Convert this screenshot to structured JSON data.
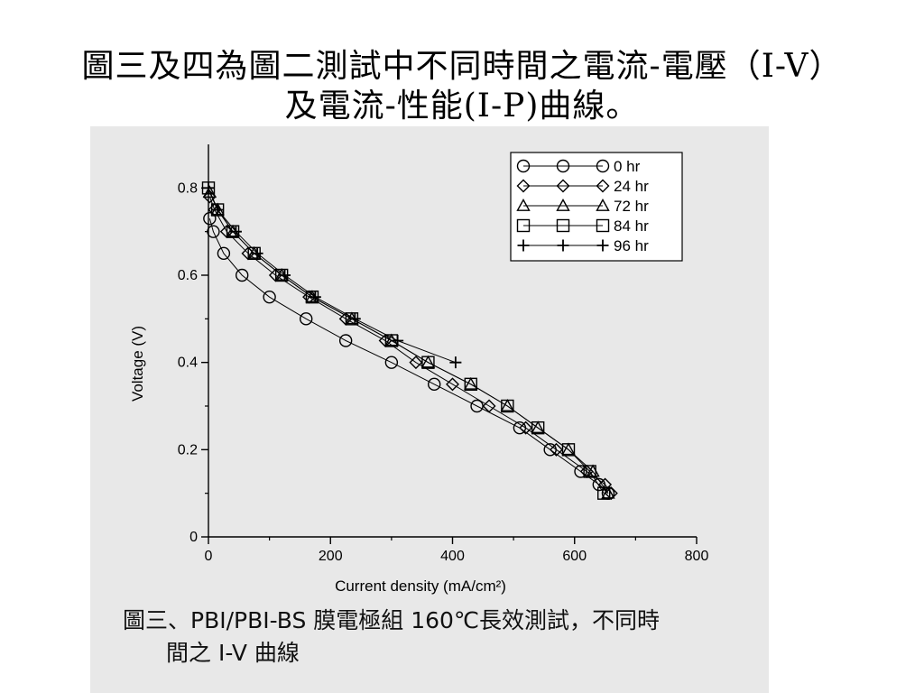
{
  "title": {
    "line1": "圖三及四為圖二測試中不同時間之電流-電壓（I-V）",
    "line2": "及電流-性能(I-P)曲線。"
  },
  "caption": {
    "line1": "圖三、PBI/PBI-BS 膜電極組 160℃長效測試，不同時",
    "line2": "間之 I-V 曲線"
  },
  "colors": {
    "panel": "#e8e8e8",
    "ink": "#000000"
  },
  "chart_data": {
    "type": "line",
    "xlabel": "Current density (mA/cm²)",
    "ylabel": "Voltage (V)",
    "xlim": [
      0,
      800
    ],
    "ylim": [
      0,
      0.9
    ],
    "xticks": [
      0,
      200,
      400,
      600,
      800
    ],
    "yticks": [
      0,
      0.2,
      0.4,
      0.6,
      0.8
    ],
    "grid": false,
    "legend_position": "top-right",
    "series": [
      {
        "name": "0 hr",
        "marker": "circle",
        "x": [
          2,
          8,
          25,
          55,
          100,
          160,
          225,
          300,
          370,
          440,
          510,
          560,
          610,
          640,
          655
        ],
        "y": [
          0.73,
          0.7,
          0.65,
          0.6,
          0.55,
          0.5,
          0.45,
          0.4,
          0.35,
          0.3,
          0.25,
          0.2,
          0.15,
          0.12,
          0.1
        ]
      },
      {
        "name": "24 hr",
        "marker": "diamond",
        "x": [
          2,
          10,
          30,
          65,
          110,
          165,
          225,
          290,
          340,
          400,
          460,
          520,
          570,
          620,
          650,
          660
        ],
        "y": [
          0.78,
          0.75,
          0.7,
          0.65,
          0.6,
          0.55,
          0.5,
          0.45,
          0.4,
          0.35,
          0.3,
          0.25,
          0.2,
          0.15,
          0.12,
          0.1
        ]
      },
      {
        "name": "72 hr",
        "marker": "triangle",
        "x": [
          2,
          15,
          40,
          75,
          120,
          170,
          235,
          300,
          360,
          430,
          490,
          540,
          590,
          630,
          655
        ],
        "y": [
          0.79,
          0.75,
          0.7,
          0.65,
          0.6,
          0.55,
          0.5,
          0.45,
          0.4,
          0.35,
          0.3,
          0.25,
          0.2,
          0.15,
          0.1
        ]
      },
      {
        "name": "84 hr",
        "marker": "square",
        "x": [
          0,
          15,
          40,
          75,
          120,
          170,
          235,
          300,
          360,
          430,
          490,
          540,
          590,
          625,
          648
        ],
        "y": [
          0.8,
          0.75,
          0.7,
          0.65,
          0.6,
          0.55,
          0.5,
          0.45,
          0.4,
          0.35,
          0.3,
          0.25,
          0.2,
          0.15,
          0.1
        ]
      },
      {
        "name": "96 hr",
        "marker": "plus",
        "x": [
          0,
          15,
          45,
          80,
          125,
          175,
          240,
          310,
          405
        ],
        "y": [
          0.8,
          0.75,
          0.7,
          0.65,
          0.6,
          0.55,
          0.5,
          0.45,
          0.4
        ]
      }
    ]
  }
}
